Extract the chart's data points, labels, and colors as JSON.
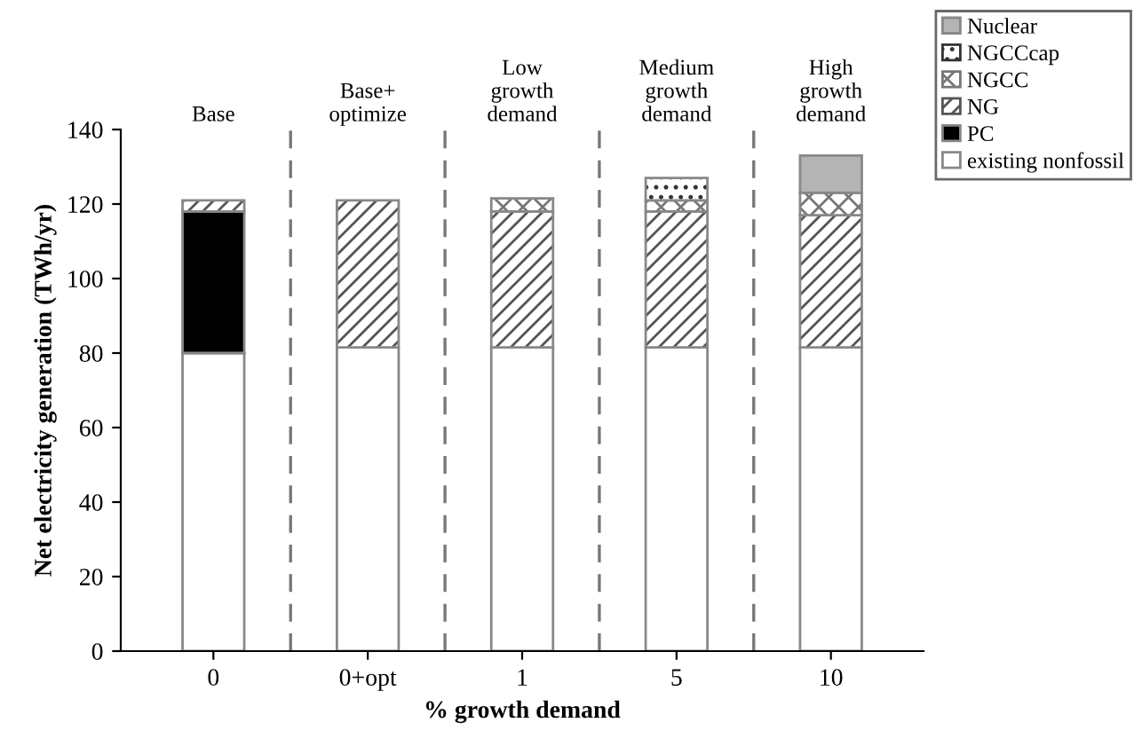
{
  "chart_data": {
    "type": "bar",
    "stacked": true,
    "xlabel": "% growth demand",
    "ylabel": "Net electricity generation (TWh/yr)",
    "categories": [
      "0",
      "0+opt",
      "1",
      "5",
      "10"
    ],
    "series": [
      {
        "name": "existing nonfossil",
        "color": "#ffffff",
        "values": [
          80,
          81.5,
          81.5,
          81.5,
          81.5
        ]
      },
      {
        "name": "PC",
        "color": "#000000",
        "values": [
          38,
          null,
          null,
          null,
          null
        ]
      },
      {
        "name": "NG",
        "color": "#555555",
        "values": [
          3,
          39.5,
          36.5,
          36.5,
          35.5
        ]
      },
      {
        "name": "NGCC",
        "color": "#777777",
        "values": [
          null,
          null,
          3.5,
          3,
          6
        ]
      },
      {
        "name": "NGCCcap",
        "color": "#333333",
        "values": [
          null,
          null,
          null,
          6,
          null
        ]
      },
      {
        "name": "Nuclear",
        "color": "#b4b4b4",
        "values": [
          null,
          null,
          null,
          null,
          10
        ]
      }
    ],
    "ylim": [
      0,
      140
    ],
    "yticks": [
      0,
      20,
      40,
      60,
      80,
      100,
      120,
      140
    ],
    "annotations": [
      "Base",
      "Base+\noptimize",
      "Low\ngrowth\ndemand",
      "Medium\ngrowth\ndemand",
      "High\ngrowth\ndemand"
    ],
    "legend": "top right",
    "grid": false
  }
}
